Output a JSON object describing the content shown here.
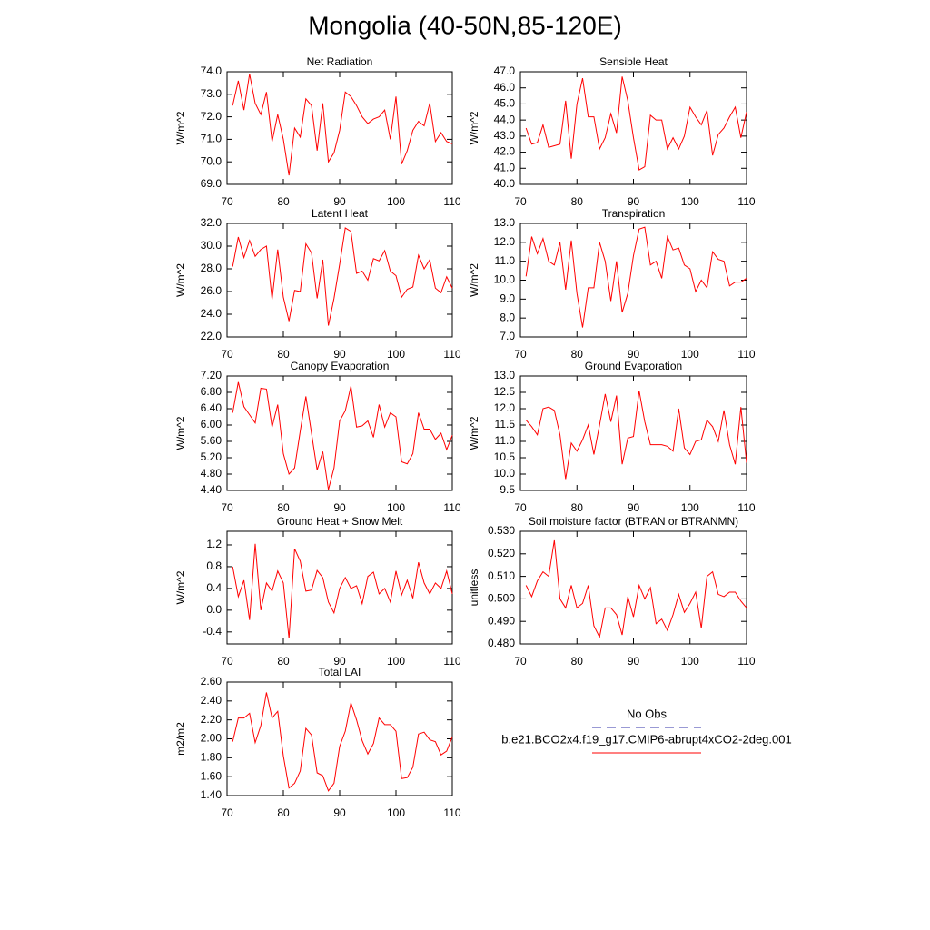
{
  "title": "Mongolia (40-50N,85-120E)",
  "legend": [
    {
      "name": "No Obs",
      "color": "#3333aa",
      "style": "dashed"
    },
    {
      "name": "b.e21.BCO2x4.f19_g17.CMIP6-abrupt4xCO2-2deg.001",
      "color": "#ff0000",
      "style": "solid"
    }
  ],
  "chart_data": [
    {
      "type": "line",
      "title": "Net Radiation",
      "ylabel": "W/m^2",
      "x": [
        71,
        72,
        73,
        74,
        75,
        76,
        77,
        78,
        79,
        80,
        81,
        82,
        83,
        84,
        85,
        86,
        87,
        88,
        89,
        90,
        91,
        92,
        93,
        94,
        95,
        96,
        97,
        98,
        99,
        100,
        101,
        102,
        103,
        104,
        105,
        106,
        107,
        108,
        109,
        110
      ],
      "xlim": [
        70,
        110
      ],
      "xticks": [
        70,
        80,
        90,
        100,
        110
      ],
      "ylim": [
        69,
        74
      ],
      "yticks": [
        {
          "value": 69,
          "label": "69.0"
        },
        {
          "value": 70,
          "label": "70.0"
        },
        {
          "value": 71,
          "label": "71.0"
        },
        {
          "value": 72,
          "label": "72.0"
        },
        {
          "value": 73,
          "label": "73.0"
        },
        {
          "value": 74,
          "label": "74.0"
        }
      ],
      "series": [
        {
          "color": "#ff0000",
          "values": [
            72.5,
            73.6,
            72.3,
            73.9,
            72.6,
            72.1,
            73.1,
            70.9,
            72.1,
            71.0,
            69.4,
            71.5,
            71.1,
            72.8,
            72.5,
            70.5,
            72.6,
            70.0,
            70.4,
            71.4,
            73.1,
            72.9,
            72.5,
            72.0,
            71.7,
            71.9,
            72.0,
            72.3,
            71.0,
            72.9,
            69.9,
            70.5,
            71.4,
            71.8,
            71.6,
            72.6,
            70.9,
            71.3,
            70.9,
            70.8
          ]
        }
      ]
    },
    {
      "type": "line",
      "title": "Sensible Heat",
      "ylabel": "W/m^2",
      "x": [
        71,
        72,
        73,
        74,
        75,
        76,
        77,
        78,
        79,
        80,
        81,
        82,
        83,
        84,
        85,
        86,
        87,
        88,
        89,
        90,
        91,
        92,
        93,
        94,
        95,
        96,
        97,
        98,
        99,
        100,
        101,
        102,
        103,
        104,
        105,
        106,
        107,
        108,
        109,
        110
      ],
      "xlim": [
        70,
        110
      ],
      "xticks": [
        70,
        80,
        90,
        100,
        110
      ],
      "ylim": [
        40,
        47
      ],
      "yticks": [
        {
          "value": 40,
          "label": "40.0"
        },
        {
          "value": 41,
          "label": "41.0"
        },
        {
          "value": 42,
          "label": "42.0"
        },
        {
          "value": 43,
          "label": "43.0"
        },
        {
          "value": 44,
          "label": "44.0"
        },
        {
          "value": 45,
          "label": "45.0"
        },
        {
          "value": 46,
          "label": "46.0"
        },
        {
          "value": 47,
          "label": "47.0"
        }
      ],
      "series": [
        {
          "color": "#ff0000",
          "values": [
            43.5,
            42.5,
            42.6,
            43.7,
            42.3,
            42.4,
            42.5,
            45.2,
            41.6,
            45.0,
            46.6,
            44.2,
            44.2,
            42.2,
            42.9,
            44.4,
            43.2,
            46.7,
            45.2,
            42.9,
            40.9,
            41.1,
            44.3,
            44.0,
            44.0,
            42.2,
            42.9,
            42.2,
            43.0,
            44.8,
            44.2,
            43.7,
            44.6,
            41.8,
            43.1,
            43.5,
            44.2,
            44.8,
            42.9,
            44.5
          ]
        }
      ]
    },
    {
      "type": "line",
      "title": "Latent Heat",
      "ylabel": "W/m^2",
      "x": [
        71,
        72,
        73,
        74,
        75,
        76,
        77,
        78,
        79,
        80,
        81,
        82,
        83,
        84,
        85,
        86,
        87,
        88,
        89,
        90,
        91,
        92,
        93,
        94,
        95,
        96,
        97,
        98,
        99,
        100,
        101,
        102,
        103,
        104,
        105,
        106,
        107,
        108,
        109,
        110
      ],
      "xlim": [
        70,
        110
      ],
      "xticks": [
        70,
        80,
        90,
        100,
        110
      ],
      "ylim": [
        22,
        32
      ],
      "yticks": [
        {
          "value": 22,
          "label": "22.0"
        },
        {
          "value": 24,
          "label": "24.0"
        },
        {
          "value": 26,
          "label": "26.0"
        },
        {
          "value": 28,
          "label": "28.0"
        },
        {
          "value": 30,
          "label": "30.0"
        },
        {
          "value": 32,
          "label": "32.0"
        }
      ],
      "series": [
        {
          "color": "#ff0000",
          "values": [
            28.2,
            30.8,
            29.0,
            30.5,
            29.1,
            29.7,
            30.0,
            25.3,
            29.7,
            25.5,
            23.4,
            26.1,
            26.0,
            30.2,
            29.4,
            25.4,
            28.8,
            23.0,
            25.4,
            28.4,
            31.6,
            31.3,
            27.6,
            27.8,
            27.0,
            28.9,
            28.7,
            29.6,
            27.8,
            27.4,
            25.5,
            26.2,
            26.4,
            29.2,
            28.0,
            28.8,
            26.3,
            25.9,
            27.3,
            26.3
          ]
        }
      ]
    },
    {
      "type": "line",
      "title": "Transpiration",
      "ylabel": "W/m^2",
      "x": [
        71,
        72,
        73,
        74,
        75,
        76,
        77,
        78,
        79,
        80,
        81,
        82,
        83,
        84,
        85,
        86,
        87,
        88,
        89,
        90,
        91,
        92,
        93,
        94,
        95,
        96,
        97,
        98,
        99,
        100,
        101,
        102,
        103,
        104,
        105,
        106,
        107,
        108,
        109,
        110
      ],
      "xlim": [
        70,
        110
      ],
      "xticks": [
        70,
        80,
        90,
        100,
        110
      ],
      "ylim": [
        7,
        13
      ],
      "yticks": [
        {
          "value": 7,
          "label": "7.0"
        },
        {
          "value": 8,
          "label": "8.0"
        },
        {
          "value": 9,
          "label": "9.0"
        },
        {
          "value": 10,
          "label": "10.0"
        },
        {
          "value": 11,
          "label": "11.0"
        },
        {
          "value": 12,
          "label": "12.0"
        },
        {
          "value": 13,
          "label": "13.0"
        }
      ],
      "series": [
        {
          "color": "#ff0000",
          "values": [
            10.2,
            12.3,
            11.4,
            12.2,
            11.0,
            10.8,
            12.0,
            9.5,
            12.1,
            9.3,
            7.5,
            9.6,
            9.6,
            12.0,
            11.0,
            8.9,
            11.0,
            8.3,
            9.3,
            11.3,
            12.7,
            12.8,
            10.8,
            11.0,
            10.1,
            12.3,
            11.6,
            11.7,
            10.8,
            10.6,
            9.4,
            10.0,
            9.6,
            11.5,
            11.1,
            11.0,
            9.7,
            9.9,
            9.9,
            10.1
          ]
        }
      ]
    },
    {
      "type": "line",
      "title": "Canopy Evaporation",
      "ylabel": "W/m^2",
      "x": [
        71,
        72,
        73,
        74,
        75,
        76,
        77,
        78,
        79,
        80,
        81,
        82,
        83,
        84,
        85,
        86,
        87,
        88,
        89,
        90,
        91,
        92,
        93,
        94,
        95,
        96,
        97,
        98,
        99,
        100,
        101,
        102,
        103,
        104,
        105,
        106,
        107,
        108,
        109,
        110
      ],
      "xlim": [
        70,
        110
      ],
      "xticks": [
        70,
        80,
        90,
        100,
        110
      ],
      "ylim": [
        4.4,
        7.2
      ],
      "yticks": [
        {
          "value": 4.4,
          "label": "4.40"
        },
        {
          "value": 4.8,
          "label": "4.80"
        },
        {
          "value": 5.2,
          "label": "5.20"
        },
        {
          "value": 5.6,
          "label": "5.60"
        },
        {
          "value": 6,
          "label": "6.00"
        },
        {
          "value": 6.4,
          "label": "6.40"
        },
        {
          "value": 6.8,
          "label": "6.80"
        },
        {
          "value": 7.2,
          "label": "7.20"
        }
      ],
      "series": [
        {
          "color": "#ff0000",
          "values": [
            6.3,
            7.05,
            6.45,
            6.25,
            6.05,
            6.9,
            6.88,
            5.95,
            6.5,
            5.3,
            4.8,
            4.95,
            5.85,
            6.7,
            5.8,
            4.9,
            5.35,
            4.42,
            4.95,
            6.1,
            6.35,
            6.95,
            5.95,
            5.98,
            6.1,
            5.7,
            6.5,
            5.95,
            6.3,
            6.2,
            5.1,
            5.05,
            5.3,
            6.3,
            5.9,
            5.9,
            5.65,
            5.8,
            5.4,
            5.75
          ]
        }
      ]
    },
    {
      "type": "line",
      "title": "Ground Evaporation",
      "ylabel": "W/m^2",
      "x": [
        71,
        72,
        73,
        74,
        75,
        76,
        77,
        78,
        79,
        80,
        81,
        82,
        83,
        84,
        85,
        86,
        87,
        88,
        89,
        90,
        91,
        92,
        93,
        94,
        95,
        96,
        97,
        98,
        99,
        100,
        101,
        102,
        103,
        104,
        105,
        106,
        107,
        108,
        109,
        110
      ],
      "xlim": [
        70,
        110
      ],
      "xticks": [
        70,
        80,
        90,
        100,
        110
      ],
      "ylim": [
        9.5,
        13
      ],
      "yticks": [
        9.5,
        {
          "value": 10,
          "label": "10.0"
        },
        10.5,
        {
          "value": 11,
          "label": "11.0"
        },
        11.5,
        {
          "value": 12,
          "label": "12.0"
        },
        12.5,
        {
          "value": 13,
          "label": "13.0"
        }
      ],
      "series": [
        {
          "color": "#ff0000",
          "values": [
            11.65,
            11.45,
            11.2,
            12.0,
            12.05,
            11.95,
            11.2,
            9.85,
            10.95,
            10.7,
            11.05,
            11.5,
            10.6,
            11.5,
            12.45,
            11.6,
            12.4,
            10.3,
            11.1,
            11.15,
            12.55,
            11.6,
            10.9,
            10.9,
            10.9,
            10.85,
            10.7,
            12.0,
            10.8,
            10.6,
            11.0,
            11.05,
            11.65,
            11.45,
            11.0,
            11.95,
            10.9,
            10.3,
            12.05,
            10.35
          ]
        }
      ]
    },
    {
      "type": "line",
      "title": "Ground Heat + Snow Melt",
      "ylabel": "W/m^2",
      "x": [
        71,
        72,
        73,
        74,
        75,
        76,
        77,
        78,
        79,
        80,
        81,
        82,
        83,
        84,
        85,
        86,
        87,
        88,
        89,
        90,
        91,
        92,
        93,
        94,
        95,
        96,
        97,
        98,
        99,
        100,
        101,
        102,
        103,
        104,
        105,
        106,
        107,
        108,
        109,
        110
      ],
      "xlim": [
        70,
        110
      ],
      "xticks": [
        70,
        80,
        90,
        100,
        110
      ],
      "ylim": [
        -0.62,
        1.45
      ],
      "yticks": [
        -0.4,
        {
          "value": 0,
          "label": "0.0"
        },
        0.4,
        0.8,
        1.2
      ],
      "series": [
        {
          "color": "#ff0000",
          "values": [
            0.8,
            0.25,
            0.55,
            -0.18,
            1.22,
            0.0,
            0.5,
            0.35,
            0.72,
            0.5,
            -0.52,
            1.13,
            0.9,
            0.35,
            0.37,
            0.73,
            0.6,
            0.15,
            -0.05,
            0.4,
            0.6,
            0.4,
            0.45,
            0.12,
            0.62,
            0.7,
            0.3,
            0.4,
            0.15,
            0.72,
            0.28,
            0.55,
            0.22,
            0.88,
            0.5,
            0.3,
            0.5,
            0.4,
            0.72,
            0.3
          ]
        }
      ]
    },
    {
      "type": "line",
      "title": "Soil moisture factor (BTRAN or BTRANMN)",
      "ylabel": "unitless",
      "x": [
        71,
        72,
        73,
        74,
        75,
        76,
        77,
        78,
        79,
        80,
        81,
        82,
        83,
        84,
        85,
        86,
        87,
        88,
        89,
        90,
        91,
        92,
        93,
        94,
        95,
        96,
        97,
        98,
        99,
        100,
        101,
        102,
        103,
        104,
        105,
        106,
        107,
        108,
        109,
        110
      ],
      "xlim": [
        70,
        110
      ],
      "xticks": [
        70,
        80,
        90,
        100,
        110
      ],
      "ylim": [
        0.48,
        0.53
      ],
      "yticks": [
        {
          "value": 0.48,
          "label": "0.480"
        },
        {
          "value": 0.49,
          "label": "0.490"
        },
        {
          "value": 0.5,
          "label": "0.500"
        },
        {
          "value": 0.51,
          "label": "0.510"
        },
        {
          "value": 0.52,
          "label": "0.520"
        },
        {
          "value": 0.53,
          "label": "0.530"
        }
      ],
      "series": [
        {
          "color": "#ff0000",
          "values": [
            0.506,
            0.501,
            0.508,
            0.512,
            0.51,
            0.526,
            0.5,
            0.496,
            0.506,
            0.496,
            0.498,
            0.506,
            0.488,
            0.483,
            0.496,
            0.496,
            0.493,
            0.484,
            0.501,
            0.492,
            0.506,
            0.5,
            0.505,
            0.489,
            0.491,
            0.486,
            0.493,
            0.502,
            0.494,
            0.498,
            0.503,
            0.487,
            0.51,
            0.512,
            0.502,
            0.501,
            0.503,
            0.503,
            0.499,
            0.496
          ]
        }
      ]
    },
    {
      "type": "line",
      "title": "Total LAI",
      "ylabel": "m2/m2",
      "x": [
        71,
        72,
        73,
        74,
        75,
        76,
        77,
        78,
        79,
        80,
        81,
        82,
        83,
        84,
        85,
        86,
        87,
        88,
        89,
        90,
        91,
        92,
        93,
        94,
        95,
        96,
        97,
        98,
        99,
        100,
        101,
        102,
        103,
        104,
        105,
        106,
        107,
        108,
        109,
        110
      ],
      "xlim": [
        70,
        110
      ],
      "xticks": [
        70,
        80,
        90,
        100,
        110
      ],
      "ylim": [
        1.4,
        2.6
      ],
      "yticks": [
        {
          "value": 1.4,
          "label": "1.40"
        },
        {
          "value": 1.6,
          "label": "1.60"
        },
        {
          "value": 1.8,
          "label": "1.80"
        },
        {
          "value": 2,
          "label": "2.00"
        },
        {
          "value": 2.2,
          "label": "2.20"
        },
        {
          "value": 2.4,
          "label": "2.40"
        },
        {
          "value": 2.6,
          "label": "2.60"
        }
      ],
      "series": [
        {
          "color": "#ff0000",
          "values": [
            1.97,
            2.22,
            2.22,
            2.27,
            1.96,
            2.14,
            2.49,
            2.22,
            2.29,
            1.82,
            1.48,
            1.53,
            1.66,
            2.11,
            2.04,
            1.64,
            1.61,
            1.45,
            1.53,
            1.92,
            2.08,
            2.38,
            2.2,
            1.98,
            1.84,
            1.95,
            2.22,
            2.15,
            2.15,
            2.08,
            1.58,
            1.59,
            1.7,
            2.05,
            2.07,
            1.99,
            1.97,
            1.83,
            1.87,
            2.02
          ]
        }
      ]
    }
  ]
}
